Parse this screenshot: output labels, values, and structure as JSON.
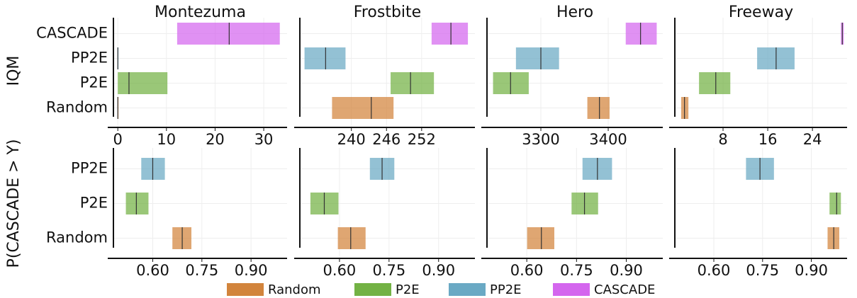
{
  "chart_data": [
    {
      "type": "interval",
      "title": "Montezuma",
      "ylabel": "IQM",
      "categories": [
        "CASCADE",
        "PP2E",
        "P2E",
        "Random"
      ],
      "colors": [
        "#d466ee",
        "#6aa9c4",
        "#73b244",
        "#d2843c"
      ],
      "low": [
        12.2,
        0,
        0,
        0
      ],
      "mid": [
        22.9,
        0,
        2.3,
        0
      ],
      "high": [
        33.3,
        0,
        10.2,
        0
      ],
      "xlim": [
        -0.9,
        34.8
      ],
      "xticks": [
        0,
        10,
        20,
        30
      ],
      "grid": true
    },
    {
      "type": "interval",
      "title": "Frostbite",
      "categories": [
        null,
        null,
        null,
        null
      ],
      "colors": [
        "#d466ee",
        "#6aa9c4",
        "#73b244",
        "#d2843c"
      ],
      "low": [
        253.7,
        232.0,
        246.7,
        236.7
      ],
      "mid": [
        257.0,
        235.6,
        250.1,
        243.4
      ],
      "high": [
        259.9,
        239.0,
        254.1,
        247.2
      ],
      "xlim": [
        231.2,
        261.1
      ],
      "xticks": [
        240,
        246,
        252
      ],
      "grid": true
    },
    {
      "type": "interval",
      "title": "Hero",
      "categories": [
        null,
        null,
        null,
        null
      ],
      "colors": [
        "#d466ee",
        "#6aa9c4",
        "#73b244",
        "#d2843c"
      ],
      "low": [
        3426,
        3263,
        3229,
        3369
      ],
      "mid": [
        3448,
        3300,
        3255,
        3387
      ],
      "high": [
        3472,
        3327,
        3282,
        3402
      ],
      "xlim": [
        3220,
        3481
      ],
      "xticks": [
        3300,
        3400
      ],
      "grid": true
    },
    {
      "type": "interval",
      "title": "Freeway",
      "categories": [
        null,
        null,
        null,
        null
      ],
      "colors": [
        "#d466ee",
        "#6aa9c4",
        "#73b244",
        "#d2843c"
      ],
      "low": [
        29.1,
        14.1,
        3.7,
        0.5
      ],
      "mid": [
        29.35,
        17.5,
        6.7,
        1.1
      ],
      "high": [
        29.6,
        20.8,
        9.3,
        1.8
      ],
      "xlim": [
        -0.63,
        30.2
      ],
      "xticks": [
        8,
        16,
        24
      ],
      "grid": true
    },
    {
      "type": "interval",
      "ylabel": "P(CASCADE > Y)",
      "categories": [
        "PP2E",
        "P2E",
        "Random"
      ],
      "colors": [
        "#6aa9c4",
        "#73b244",
        "#d2843c"
      ],
      "low": [
        0.565,
        0.518,
        0.66
      ],
      "mid": [
        0.6,
        0.55,
        0.69
      ],
      "high": [
        0.637,
        0.587,
        0.718
      ],
      "xlim": [
        0.48,
        1.01
      ],
      "xticks": [
        {
          "value": 0.6,
          "label": "0.60"
        },
        0.75,
        {
          "value": 0.9,
          "label": "0.90"
        }
      ],
      "grid": true
    },
    {
      "type": "interval",
      "categories": [
        null,
        null,
        null
      ],
      "colors": [
        "#6aa9c4",
        "#73b244",
        "#d2843c"
      ],
      "low": [
        0.692,
        0.512,
        0.595
      ],
      "mid": [
        0.729,
        0.554,
        0.634
      ],
      "high": [
        0.766,
        0.597,
        0.679
      ],
      "xlim": [
        0.48,
        1.01
      ],
      "xticks": [
        {
          "value": 0.6,
          "label": "0.60"
        },
        0.75,
        {
          "value": 0.9,
          "label": "0.90"
        }
      ],
      "grid": true
    },
    {
      "type": "interval",
      "categories": [
        null,
        null,
        null
      ],
      "colors": [
        "#6aa9c4",
        "#73b244",
        "#d2843c"
      ],
      "low": [
        0.768,
        0.735,
        0.601
      ],
      "mid": [
        0.813,
        0.774,
        0.644
      ],
      "high": [
        0.857,
        0.815,
        0.683
      ],
      "xlim": [
        0.48,
        1.01
      ],
      "xticks": [
        {
          "value": 0.6,
          "label": "0.60"
        },
        0.75,
        {
          "value": 0.9,
          "label": "0.90"
        }
      ],
      "grid": true
    },
    {
      "type": "interval",
      "categories": [
        null,
        null,
        null
      ],
      "colors": [
        "#6aa9c4",
        "#73b244",
        "#d2843c"
      ],
      "low": [
        0.699,
        0.956,
        0.95
      ],
      "mid": [
        0.742,
        0.978,
        0.969
      ],
      "high": [
        0.785,
        0.991,
        0.986
      ],
      "xlim": [
        0.48,
        1.01
      ],
      "xticks": [
        {
          "value": 0.6,
          "label": "0.60"
        },
        0.75,
        {
          "value": 0.9,
          "label": "0.90"
        }
      ],
      "grid": true
    }
  ],
  "legend": {
    "entries": [
      {
        "name": "Random",
        "color": "#d2843c"
      },
      {
        "name": "P2E",
        "color": "#73b244"
      },
      {
        "name": "PP2E",
        "color": "#6aa9c4"
      },
      {
        "name": "CASCADE",
        "color": "#d466ee"
      }
    ]
  }
}
